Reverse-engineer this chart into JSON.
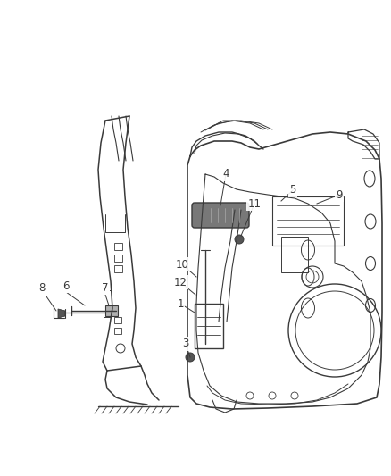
{
  "background_color": "#ffffff",
  "line_color": "#3a3a3a",
  "label_color": "#3a3a3a",
  "label_fontsize": 8.5,
  "fig_width": 4.38,
  "fig_height": 5.33,
  "dpi": 100
}
